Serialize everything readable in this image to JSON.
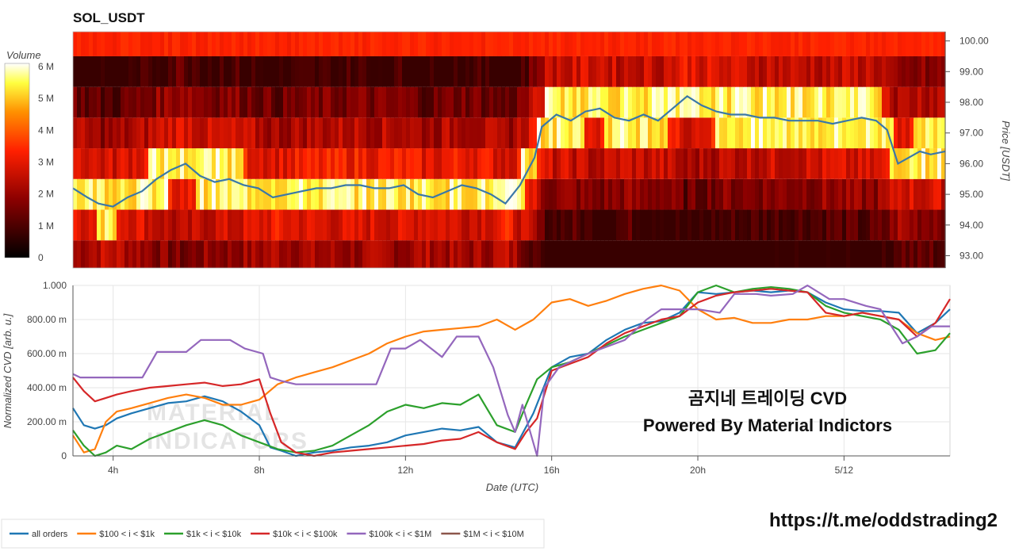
{
  "header": {
    "title": "SOL_USDT"
  },
  "overlay": {
    "title_line1": "곰지네 트레이딩 CVD",
    "title_line2": "Powered By Material Indictors",
    "link": "https://t.me/oddstrading2",
    "watermark_line1": "MATERIAL",
    "watermark_line2": "INDICATORS"
  },
  "colors": {
    "all_orders": "#1f77b4",
    "s100_1k": "#ff7f0e",
    "s1k_10k": "#2ca02c",
    "s10k_100k": "#d62728",
    "s100k_1m": "#9467bd",
    "s1m_10m": "#8c564b",
    "price_line": "#3a78a8"
  },
  "chart_data": [
    {
      "type": "heatmap",
      "title": "SOL_USDT",
      "colorbar_label": "Volume",
      "colorbar_ticks": [
        "0",
        "1 M",
        "2 M",
        "3 M",
        "4 M",
        "5 M",
        "6 M"
      ],
      "colorbar_range": [
        0,
        6000000
      ],
      "ylabel": "Price [USDT]",
      "price_ticks": [
        "93.00",
        "94.00",
        "95.00",
        "96.00",
        "97.00",
        "98.00",
        "99.00",
        "100.00"
      ],
      "ylim": [
        92.6,
        100.3
      ],
      "price_bins": [
        93.0,
        94.0,
        95.0,
        96.0,
        97.0,
        98.0,
        99.0,
        100.0
      ],
      "x_time_ticks": [
        "4h",
        "8h",
        "12h",
        "16h",
        "20h",
        "5/12"
      ],
      "xlim_hours": [
        2.9,
        26.9
      ],
      "price_series": {
        "name": "price",
        "x": [
          2.9,
          3.3,
          3.6,
          4.0,
          4.4,
          4.8,
          5.2,
          5.6,
          6.0,
          6.4,
          6.8,
          7.2,
          7.6,
          8.0,
          8.4,
          8.8,
          9.2,
          9.6,
          10.0,
          10.4,
          10.8,
          11.2,
          11.6,
          12.0,
          12.4,
          12.8,
          13.2,
          13.6,
          14.0,
          14.4,
          14.8,
          15.2,
          15.6,
          15.8,
          16.2,
          16.6,
          17.0,
          17.4,
          17.8,
          18.2,
          18.6,
          19.0,
          19.4,
          19.8,
          20.2,
          20.6,
          21.0,
          21.4,
          21.8,
          22.2,
          22.6,
          23.0,
          23.4,
          23.8,
          24.2,
          24.6,
          25.0,
          25.3,
          25.6,
          25.9,
          26.2,
          26.5,
          26.9
        ],
        "y": [
          95.2,
          94.9,
          94.7,
          94.6,
          94.9,
          95.1,
          95.5,
          95.8,
          96.0,
          95.6,
          95.4,
          95.5,
          95.3,
          95.2,
          94.9,
          95.0,
          95.1,
          95.2,
          95.2,
          95.3,
          95.3,
          95.2,
          95.2,
          95.3,
          95.0,
          94.9,
          95.1,
          95.3,
          95.2,
          95.0,
          94.7,
          95.3,
          96.2,
          97.2,
          97.6,
          97.4,
          97.7,
          97.8,
          97.5,
          97.4,
          97.6,
          97.4,
          97.8,
          98.2,
          97.9,
          97.7,
          97.6,
          97.6,
          97.5,
          97.5,
          97.4,
          97.4,
          97.4,
          97.3,
          97.4,
          97.5,
          97.4,
          97.1,
          96.0,
          96.2,
          96.4,
          96.3,
          96.4
        ]
      }
    },
    {
      "type": "line",
      "ylabel": "Normalized CVD [arb. u.]",
      "xlabel": "Date (UTC)",
      "y_ticks": [
        "0",
        "200.00 m",
        "400.00 m",
        "600.00 m",
        "800.00 m",
        "1.000"
      ],
      "ylim": [
        0,
        1
      ],
      "x_time_ticks": [
        "4h",
        "8h",
        "12h",
        "16h",
        "20h",
        "5/12"
      ],
      "xlim_hours": [
        2.9,
        26.9
      ],
      "legend_position": "bottom-left",
      "series": [
        {
          "name": "all orders",
          "color_key": "all_orders",
          "x": [
            2.9,
            3.2,
            3.5,
            3.8,
            4.1,
            4.5,
            5.0,
            5.5,
            6.0,
            6.5,
            7.0,
            7.5,
            8.0,
            8.3,
            8.6,
            9.0,
            9.5,
            10.0,
            10.5,
            11.0,
            11.5,
            12.0,
            12.5,
            13.0,
            13.5,
            14.0,
            14.5,
            15.0,
            15.5,
            16.0,
            16.5,
            17.0,
            17.5,
            18.0,
            18.5,
            19.0,
            19.5,
            20.0,
            20.5,
            21.0,
            21.5,
            22.0,
            22.5,
            23.0,
            23.5,
            24.0,
            24.5,
            25.0,
            25.5,
            26.0,
            26.5,
            26.9
          ],
          "y": [
            0.28,
            0.18,
            0.16,
            0.18,
            0.22,
            0.25,
            0.28,
            0.31,
            0.32,
            0.35,
            0.32,
            0.26,
            0.18,
            0.05,
            0.03,
            0.0,
            0.02,
            0.03,
            0.05,
            0.06,
            0.08,
            0.12,
            0.14,
            0.16,
            0.15,
            0.17,
            0.08,
            0.05,
            0.25,
            0.52,
            0.58,
            0.6,
            0.68,
            0.74,
            0.78,
            0.79,
            0.84,
            0.96,
            0.95,
            0.96,
            0.97,
            0.96,
            0.97,
            0.96,
            0.9,
            0.86,
            0.85,
            0.85,
            0.84,
            0.72,
            0.78,
            0.86
          ]
        },
        {
          "name": "$100 < i < $1k",
          "color_key": "s100_1k",
          "x": [
            2.9,
            3.2,
            3.5,
            3.8,
            4.1,
            4.5,
            5.0,
            5.5,
            6.0,
            6.5,
            7.0,
            7.5,
            8.0,
            8.5,
            9.0,
            9.5,
            10.0,
            10.5,
            11.0,
            11.5,
            12.0,
            12.5,
            13.0,
            13.5,
            14.0,
            14.5,
            15.0,
            15.5,
            16.0,
            16.5,
            17.0,
            17.5,
            18.0,
            18.5,
            19.0,
            19.5,
            20.0,
            20.5,
            21.0,
            21.5,
            22.0,
            22.5,
            23.0,
            23.5,
            24.0,
            24.5,
            25.0,
            25.5,
            26.0,
            26.5,
            26.9
          ],
          "y": [
            0.12,
            0.02,
            0.04,
            0.2,
            0.26,
            0.28,
            0.31,
            0.34,
            0.36,
            0.34,
            0.3,
            0.3,
            0.33,
            0.42,
            0.46,
            0.49,
            0.52,
            0.56,
            0.6,
            0.66,
            0.7,
            0.73,
            0.74,
            0.75,
            0.76,
            0.8,
            0.74,
            0.8,
            0.9,
            0.92,
            0.88,
            0.91,
            0.95,
            0.98,
            1.0,
            0.97,
            0.86,
            0.8,
            0.81,
            0.78,
            0.78,
            0.8,
            0.8,
            0.82,
            0.82,
            0.84,
            0.82,
            0.8,
            0.72,
            0.68,
            0.7
          ]
        },
        {
          "name": "$1k < i < $10k",
          "color_key": "s1k_10k",
          "x": [
            2.9,
            3.2,
            3.5,
            3.8,
            4.1,
            4.5,
            5.0,
            5.5,
            6.0,
            6.5,
            7.0,
            7.5,
            8.0,
            8.5,
            9.0,
            9.5,
            10.0,
            10.5,
            11.0,
            11.5,
            12.0,
            12.5,
            13.0,
            13.5,
            14.0,
            14.5,
            15.0,
            15.3,
            15.6,
            16.0,
            16.5,
            17.0,
            17.5,
            18.0,
            18.5,
            19.0,
            19.5,
            20.0,
            20.5,
            21.0,
            21.5,
            22.0,
            22.5,
            23.0,
            23.5,
            24.0,
            24.5,
            25.0,
            25.5,
            26.0,
            26.5,
            26.9
          ],
          "y": [
            0.15,
            0.06,
            0.0,
            0.02,
            0.06,
            0.04,
            0.1,
            0.14,
            0.18,
            0.21,
            0.18,
            0.12,
            0.08,
            0.04,
            0.02,
            0.03,
            0.06,
            0.12,
            0.18,
            0.26,
            0.3,
            0.28,
            0.31,
            0.3,
            0.36,
            0.18,
            0.14,
            0.3,
            0.45,
            0.52,
            0.55,
            0.6,
            0.65,
            0.7,
            0.74,
            0.78,
            0.82,
            0.96,
            1.0,
            0.96,
            0.98,
            0.99,
            0.98,
            0.96,
            0.88,
            0.84,
            0.82,
            0.8,
            0.74,
            0.6,
            0.62,
            0.72
          ]
        },
        {
          "name": "$10k < i < $100k",
          "color_key": "s10k_100k",
          "x": [
            2.9,
            3.2,
            3.5,
            3.8,
            4.1,
            4.5,
            5.0,
            5.5,
            6.0,
            6.5,
            7.0,
            7.5,
            8.0,
            8.3,
            8.6,
            9.0,
            9.5,
            10.0,
            10.5,
            11.0,
            11.5,
            12.0,
            12.5,
            13.0,
            13.5,
            14.0,
            14.5,
            15.0,
            15.3,
            15.6,
            16.0,
            16.5,
            17.0,
            17.5,
            18.0,
            18.5,
            19.0,
            19.5,
            20.0,
            20.5,
            21.0,
            21.5,
            22.0,
            22.5,
            23.0,
            23.5,
            24.0,
            24.5,
            25.0,
            25.5,
            26.0,
            26.5,
            26.9
          ],
          "y": [
            0.46,
            0.38,
            0.32,
            0.34,
            0.36,
            0.38,
            0.4,
            0.41,
            0.42,
            0.43,
            0.41,
            0.42,
            0.45,
            0.25,
            0.08,
            0.02,
            0.0,
            0.02,
            0.03,
            0.04,
            0.05,
            0.06,
            0.07,
            0.09,
            0.1,
            0.14,
            0.08,
            0.04,
            0.14,
            0.22,
            0.5,
            0.54,
            0.58,
            0.66,
            0.72,
            0.76,
            0.8,
            0.82,
            0.9,
            0.94,
            0.96,
            0.97,
            0.98,
            0.97,
            0.96,
            0.84,
            0.82,
            0.84,
            0.82,
            0.8,
            0.7,
            0.78,
            0.92
          ]
        },
        {
          "name": "$100k < i < $1M",
          "color_key": "s100k_1m",
          "x": [
            2.9,
            3.1,
            3.4,
            4.0,
            4.8,
            5.2,
            6.0,
            6.4,
            7.2,
            7.6,
            8.1,
            8.3,
            8.6,
            9.0,
            9.6,
            10.4,
            11.2,
            11.6,
            12.0,
            12.4,
            13.0,
            13.4,
            14.0,
            14.4,
            14.8,
            15.0,
            15.2,
            15.6,
            15.8,
            16.2,
            17.0,
            18.0,
            18.6,
            19.0,
            20.0,
            20.6,
            21.0,
            21.6,
            22.0,
            22.6,
            23.0,
            23.6,
            24.0,
            24.6,
            25.0,
            25.6,
            26.0,
            26.4,
            26.9
          ],
          "y": [
            0.48,
            0.46,
            0.46,
            0.46,
            0.46,
            0.61,
            0.61,
            0.68,
            0.68,
            0.63,
            0.6,
            0.46,
            0.44,
            0.42,
            0.42,
            0.42,
            0.42,
            0.63,
            0.63,
            0.68,
            0.58,
            0.7,
            0.7,
            0.52,
            0.24,
            0.14,
            0.3,
            0.0,
            0.4,
            0.52,
            0.6,
            0.68,
            0.8,
            0.86,
            0.86,
            0.84,
            0.95,
            0.95,
            0.94,
            0.95,
            1.0,
            0.92,
            0.92,
            0.88,
            0.86,
            0.66,
            0.7,
            0.76,
            0.76
          ]
        },
        {
          "name": "$1M < i < $10M",
          "color_key": "s1m_10m",
          "x": [],
          "y": []
        }
      ]
    }
  ]
}
